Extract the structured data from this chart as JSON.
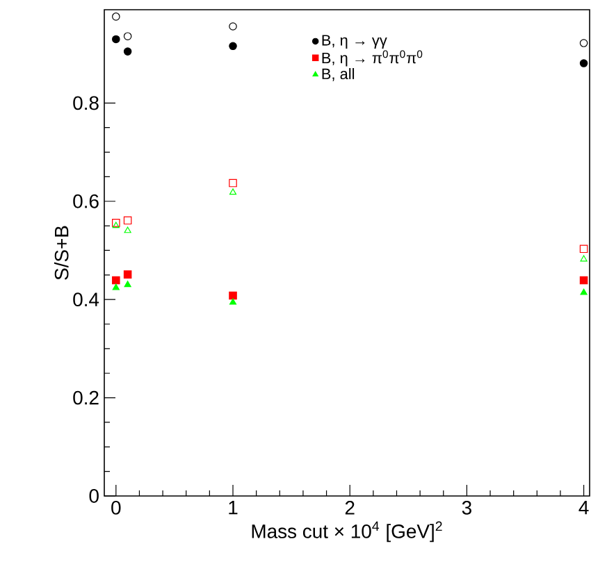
{
  "chart_data": {
    "type": "scatter",
    "xlabel": "Mass cut × 10$^{4}$ [GeV]$^{2}$",
    "ylabel": "S/S+B",
    "xlim": [
      -0.1,
      4.05
    ],
    "ylim": [
      0,
      0.99
    ],
    "xticks": [
      0,
      1,
      2,
      3,
      4
    ],
    "yticks": [
      0,
      0.2,
      0.4,
      0.6,
      0.8
    ],
    "grid": false,
    "legend": "top right",
    "series": [
      {
        "name": "B, η → γγ",
        "color": "#000000",
        "marker": "circle",
        "x": [
          0,
          0.1,
          1,
          4
        ],
        "values": [
          0.93,
          0.905,
          0.916,
          0.881
        ]
      },
      {
        "name": "B, η → π$^{0}$π$^{0}$π$^{0}$",
        "color": "#ff0000",
        "marker": "square",
        "x": [
          0,
          0.1,
          1,
          4
        ],
        "values": [
          0.439,
          0.451,
          0.408,
          0.439
        ]
      },
      {
        "name": "B, all",
        "color": "#00ff00",
        "marker": "triangle",
        "x": [
          0,
          0.1,
          1,
          4
        ],
        "values": [
          0.424,
          0.43,
          0.394,
          0.414
        ]
      },
      {
        "color": "#000000",
        "marker": "circle",
        "x": [
          0,
          0.1,
          1,
          4
        ],
        "values": [
          0.976,
          0.936,
          0.956,
          0.922
        ]
      },
      {
        "color": "#ff0000",
        "marker": "square",
        "x": [
          0,
          0.1,
          1,
          4
        ],
        "values": [
          0.556,
          0.561,
          0.637,
          0.503
        ]
      },
      {
        "color": "#00ff00",
        "marker": "triangle",
        "x": [
          0,
          0.1,
          1,
          4
        ],
        "values": [
          0.55,
          0.54,
          0.618,
          0.482
        ]
      }
    ]
  }
}
